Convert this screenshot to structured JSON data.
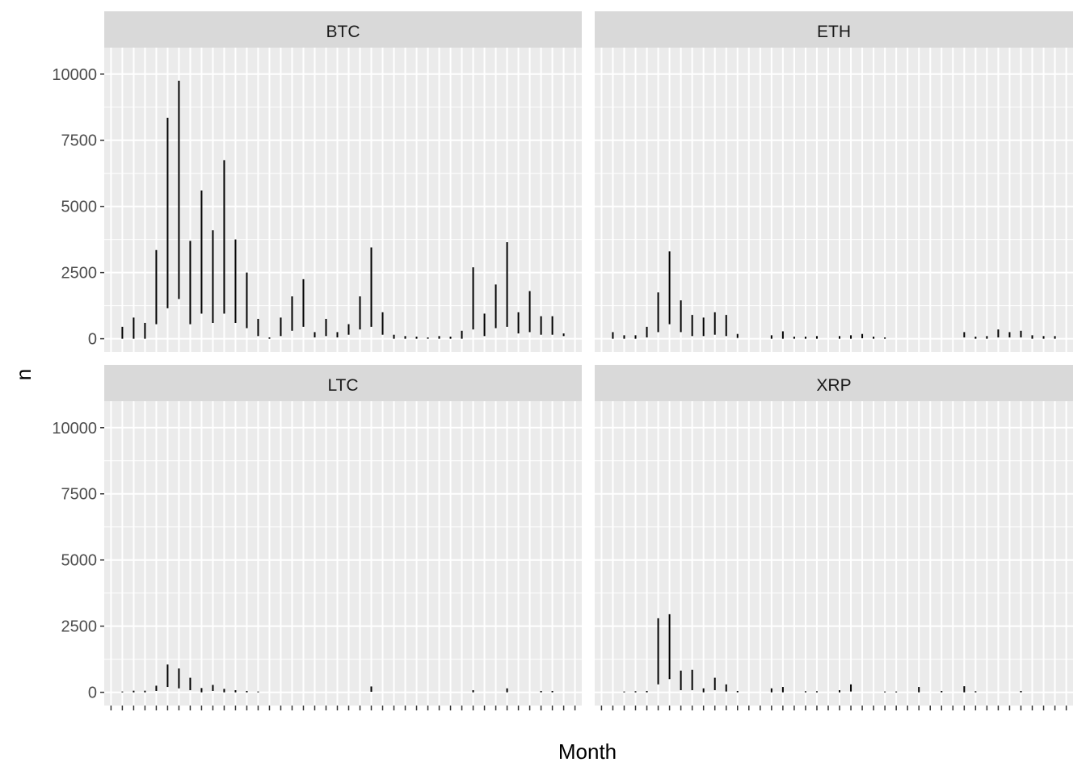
{
  "chart_data": {
    "type": "linerange",
    "xlabel": "Month",
    "ylabel": "n",
    "ylim": [
      -500,
      11000
    ],
    "y_ticks": [
      0,
      2500,
      5000,
      7500,
      10000
    ],
    "y_tick_labels": [
      "0",
      "2500",
      "5000",
      "7500",
      "10000"
    ],
    "month_count": 42,
    "grid": true,
    "colors": {
      "panel_background": "#ebebeb",
      "strip_background": "#d9d9d9",
      "grid": "#ffffff",
      "line": "#000000"
    },
    "facets": [
      {
        "name": "BTC",
        "ranges": [
          [
            null,
            null
          ],
          [
            0,
            450
          ],
          [
            0,
            800
          ],
          [
            0,
            600
          ],
          [
            550,
            3350
          ],
          [
            1150,
            8350
          ],
          [
            1500,
            9750
          ],
          [
            550,
            3700
          ],
          [
            950,
            5600
          ],
          [
            600,
            4100
          ],
          [
            950,
            6750
          ],
          [
            600,
            3750
          ],
          [
            400,
            2500
          ],
          [
            100,
            750
          ],
          [
            0,
            50
          ],
          [
            100,
            800
          ],
          [
            300,
            1600
          ],
          [
            450,
            2250
          ],
          [
            50,
            250
          ],
          [
            100,
            750
          ],
          [
            50,
            250
          ],
          [
            150,
            550
          ],
          [
            350,
            1600
          ],
          [
            450,
            3450
          ],
          [
            150,
            1000
          ],
          [
            0,
            150
          ],
          [
            0,
            100
          ],
          [
            0,
            80
          ],
          [
            0,
            50
          ],
          [
            0,
            100
          ],
          [
            0,
            80
          ],
          [
            0,
            300
          ],
          [
            350,
            2700
          ],
          [
            100,
            950
          ],
          [
            400,
            2050
          ],
          [
            450,
            3650
          ],
          [
            200,
            1000
          ],
          [
            250,
            1800
          ],
          [
            150,
            850
          ],
          [
            150,
            850
          ],
          [
            100,
            200
          ],
          [
            null,
            null
          ]
        ]
      },
      {
        "name": "ETH",
        "ranges": [
          [
            null,
            null
          ],
          [
            0,
            250
          ],
          [
            0,
            130
          ],
          [
            0,
            130
          ],
          [
            50,
            450
          ],
          [
            250,
            1750
          ],
          [
            550,
            3300
          ],
          [
            250,
            1450
          ],
          [
            100,
            900
          ],
          [
            100,
            800
          ],
          [
            150,
            1000
          ],
          [
            100,
            900
          ],
          [
            30,
            180
          ],
          [
            null,
            null
          ],
          [
            null,
            null
          ],
          [
            0,
            130
          ],
          [
            0,
            280
          ],
          [
            0,
            80
          ],
          [
            0,
            80
          ],
          [
            0,
            100
          ],
          [
            null,
            null
          ],
          [
            0,
            100
          ],
          [
            0,
            130
          ],
          [
            20,
            180
          ],
          [
            0,
            80
          ],
          [
            0,
            50
          ],
          [
            null,
            null
          ],
          [
            null,
            null
          ],
          [
            null,
            null
          ],
          [
            null,
            null
          ],
          [
            null,
            null
          ],
          [
            null,
            null
          ],
          [
            50,
            250
          ],
          [
            0,
            80
          ],
          [
            0,
            100
          ],
          [
            50,
            350
          ],
          [
            50,
            250
          ],
          [
            50,
            300
          ],
          [
            0,
            130
          ],
          [
            0,
            100
          ],
          [
            0,
            100
          ],
          [
            null,
            null
          ]
        ]
      },
      {
        "name": "LTC",
        "ranges": [
          [
            null,
            null
          ],
          [
            0,
            30
          ],
          [
            0,
            60
          ],
          [
            0,
            60
          ],
          [
            50,
            250
          ],
          [
            200,
            1050
          ],
          [
            150,
            900
          ],
          [
            80,
            550
          ],
          [
            0,
            160
          ],
          [
            50,
            280
          ],
          [
            0,
            130
          ],
          [
            0,
            80
          ],
          [
            0,
            50
          ],
          [
            0,
            30
          ],
          [
            null,
            null
          ],
          [
            null,
            null
          ],
          [
            null,
            null
          ],
          [
            null,
            null
          ],
          [
            null,
            null
          ],
          [
            null,
            null
          ],
          [
            null,
            null
          ],
          [
            null,
            null
          ],
          [
            null,
            null
          ],
          [
            20,
            220
          ],
          [
            null,
            null
          ],
          [
            null,
            null
          ],
          [
            null,
            null
          ],
          [
            null,
            null
          ],
          [
            null,
            null
          ],
          [
            null,
            null
          ],
          [
            null,
            null
          ],
          [
            null,
            null
          ],
          [
            0,
            80
          ],
          [
            null,
            null
          ],
          [
            null,
            null
          ],
          [
            0,
            150
          ],
          [
            null,
            null
          ],
          [
            null,
            null
          ],
          [
            0,
            50
          ],
          [
            0,
            50
          ],
          [
            null,
            null
          ],
          [
            null,
            null
          ]
        ]
      },
      {
        "name": "XRP",
        "ranges": [
          [
            null,
            null
          ],
          [
            null,
            null
          ],
          [
            0,
            30
          ],
          [
            0,
            40
          ],
          [
            0,
            50
          ],
          [
            300,
            2800
          ],
          [
            500,
            2950
          ],
          [
            80,
            820
          ],
          [
            80,
            850
          ],
          [
            0,
            150
          ],
          [
            80,
            550
          ],
          [
            30,
            300
          ],
          [
            0,
            50
          ],
          [
            null,
            null
          ],
          [
            null,
            null
          ],
          [
            0,
            150
          ],
          [
            0,
            200
          ],
          [
            null,
            null
          ],
          [
            0,
            40
          ],
          [
            0,
            40
          ],
          [
            null,
            null
          ],
          [
            0,
            80
          ],
          [
            30,
            300
          ],
          [
            null,
            null
          ],
          [
            null,
            null
          ],
          [
            0,
            30
          ],
          [
            0,
            30
          ],
          [
            null,
            null
          ],
          [
            0,
            200
          ],
          [
            null,
            null
          ],
          [
            0,
            50
          ],
          [
            null,
            null
          ],
          [
            0,
            230
          ],
          [
            0,
            40
          ],
          [
            null,
            null
          ],
          [
            null,
            null
          ],
          [
            null,
            null
          ],
          [
            0,
            50
          ],
          [
            null,
            null
          ],
          [
            null,
            null
          ],
          [
            null,
            null
          ],
          [
            null,
            null
          ]
        ]
      }
    ]
  }
}
